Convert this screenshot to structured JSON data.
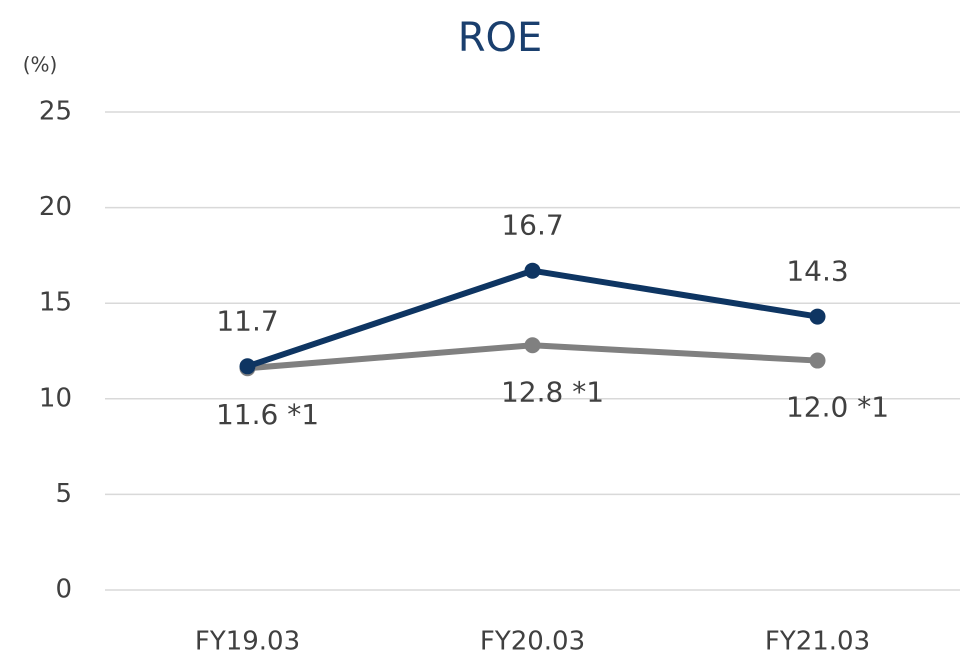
{
  "chart_data": {
    "type": "line",
    "title": "ROE",
    "y_label": "(%)",
    "categories": [
      "FY19.03",
      "FY20.03",
      "FY21.03"
    ],
    "series": [
      {
        "color": "#0e3562",
        "values": [
          11.7,
          16.7,
          14.3
        ]
      },
      {
        "color": "#808080",
        "values": [
          11.6,
          12.8,
          12.0
        ],
        "value_labels": [
          "11.6 *1",
          "12.8 *1",
          "12.0 *1"
        ]
      }
    ],
    "ylim": [
      0,
      25
    ],
    "yticks": [
      0,
      5,
      10,
      15,
      20,
      25
    ],
    "grid": true
  }
}
